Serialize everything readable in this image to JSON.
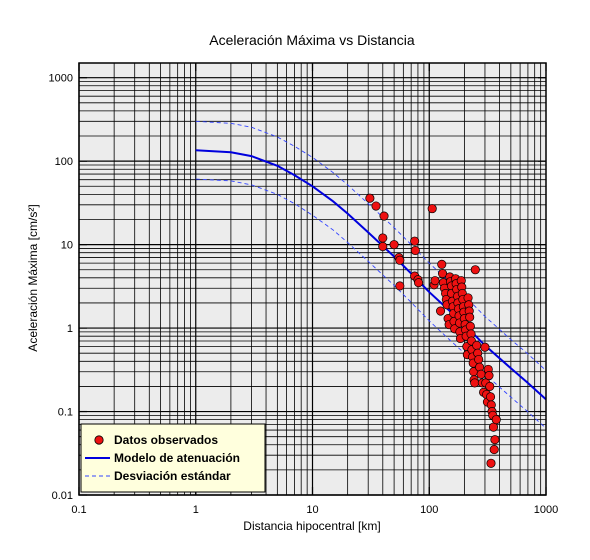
{
  "chart_data": {
    "type": "scatter",
    "title": "Aceleración Máxima vs Distancia",
    "xlabel": "Distancia hipocentral [km]",
    "ylabel": "Aceleración Máxima [cm/s²]",
    "x_scale": "log",
    "y_scale": "log",
    "xlim": [
      0.1,
      1000
    ],
    "ylim": [
      0.01,
      1500
    ],
    "x_ticks": [
      {
        "value": 0.1,
        "label": "0.1"
      },
      {
        "value": 1,
        "label": "1"
      },
      {
        "value": 10,
        "label": "10"
      },
      {
        "value": 100,
        "label": "100"
      },
      {
        "value": 1000,
        "label": "1000"
      }
    ],
    "y_ticks": [
      {
        "value": 0.01,
        "label": "0.01"
      },
      {
        "value": 0.1,
        "label": "0.1"
      },
      {
        "value": 1,
        "label": "1"
      },
      {
        "value": 10,
        "label": "10"
      },
      {
        "value": 100,
        "label": "100"
      },
      {
        "value": 1000,
        "label": "1000"
      }
    ],
    "grid": true,
    "legend_position": "bottom-left",
    "colors": {
      "plot_background": "#ececec",
      "grid": "#000000",
      "points": "#ee1111",
      "model": "#0000dd",
      "std": "#3344ff",
      "legend_background": "#ffffdd"
    },
    "series": [
      {
        "name": "Datos observados",
        "kind": "scatter",
        "points": [
          [
            31,
            36
          ],
          [
            35,
            29
          ],
          [
            41,
            22
          ],
          [
            40,
            12
          ],
          [
            40,
            9.5
          ],
          [
            50,
            10
          ],
          [
            55,
            7
          ],
          [
            56,
            6.5
          ],
          [
            56,
            3.2
          ],
          [
            75,
            11
          ],
          [
            76,
            8.5
          ],
          [
            75,
            4.2
          ],
          [
            80,
            3.8
          ],
          [
            81,
            3.5
          ],
          [
            106,
            27
          ],
          [
            110,
            3.3
          ],
          [
            112,
            3.7
          ],
          [
            125,
            1.6
          ],
          [
            128,
            5.8
          ],
          [
            130,
            4.5
          ],
          [
            132,
            3.5
          ],
          [
            135,
            3.0
          ],
          [
            138,
            2.6
          ],
          [
            140,
            2.2
          ],
          [
            142,
            1.9
          ],
          [
            145,
            1.3
          ],
          [
            148,
            1.1
          ],
          [
            150,
            4.1
          ],
          [
            152,
            3.6
          ],
          [
            155,
            3.2
          ],
          [
            155,
            2.6
          ],
          [
            158,
            2.1
          ],
          [
            160,
            1.8
          ],
          [
            162,
            1.5
          ],
          [
            163,
            1.2
          ],
          [
            165,
            0.98
          ],
          [
            168,
            3.9
          ],
          [
            170,
            3.4
          ],
          [
            172,
            2.9
          ],
          [
            175,
            2.4
          ],
          [
            176,
            2.0
          ],
          [
            178,
            1.7
          ],
          [
            180,
            1.4
          ],
          [
            182,
            1.15
          ],
          [
            183,
            0.9
          ],
          [
            185,
            0.75
          ],
          [
            188,
            3.7
          ],
          [
            190,
            3.1
          ],
          [
            192,
            2.6
          ],
          [
            194,
            2.2
          ],
          [
            196,
            1.8
          ],
          [
            198,
            1.55
          ],
          [
            200,
            1.3
          ],
          [
            203,
            1.1
          ],
          [
            205,
            0.95
          ],
          [
            207,
            0.8
          ],
          [
            210,
            0.6
          ],
          [
            212,
            0.48
          ],
          [
            215,
            2.3
          ],
          [
            218,
            1.9
          ],
          [
            220,
            1.6
          ],
          [
            222,
            1.35
          ],
          [
            225,
            1.05
          ],
          [
            228,
            0.85
          ],
          [
            230,
            0.7
          ],
          [
            232,
            0.55
          ],
          [
            235,
            0.45
          ],
          [
            238,
            0.38
          ],
          [
            240,
            0.3
          ],
          [
            242,
            0.24
          ],
          [
            245,
            0.22
          ],
          [
            248,
            5.0
          ],
          [
            255,
            0.62
          ],
          [
            260,
            0.5
          ],
          [
            265,
            0.42
          ],
          [
            270,
            0.34
          ],
          [
            278,
            0.28
          ],
          [
            285,
            0.22
          ],
          [
            292,
            0.17
          ],
          [
            300,
            0.59
          ],
          [
            305,
            0.22
          ],
          [
            310,
            0.16
          ],
          [
            315,
            0.13
          ],
          [
            320,
            0.32
          ],
          [
            325,
            0.27
          ],
          [
            330,
            0.2
          ],
          [
            335,
            0.15
          ],
          [
            340,
            0.12
          ],
          [
            345,
            0.1
          ],
          [
            338,
            0.024
          ],
          [
            350,
            0.09
          ],
          [
            355,
            0.065
          ],
          [
            360,
            0.035
          ],
          [
            365,
            0.046
          ],
          [
            375,
            0.08
          ]
        ]
      },
      {
        "name": "Modelo de atenuación",
        "kind": "line",
        "points": [
          [
            1,
            135
          ],
          [
            2,
            128
          ],
          [
            3,
            115
          ],
          [
            5,
            88
          ],
          [
            7,
            68
          ],
          [
            10,
            50
          ],
          [
            15,
            33
          ],
          [
            20,
            23.5
          ],
          [
            30,
            14
          ],
          [
            50,
            7.2
          ],
          [
            70,
            4.5
          ],
          [
            100,
            2.7
          ],
          [
            150,
            1.6
          ],
          [
            200,
            1.1
          ],
          [
            300,
            0.62
          ],
          [
            500,
            0.33
          ],
          [
            700,
            0.22
          ],
          [
            1000,
            0.14
          ]
        ]
      },
      {
        "name": "Desviación estándar",
        "kind": "line-dashed",
        "upper": [
          [
            1,
            300
          ],
          [
            2,
            284
          ],
          [
            3,
            255
          ],
          [
            5,
            195
          ],
          [
            7,
            151
          ],
          [
            10,
            111
          ],
          [
            15,
            73
          ],
          [
            20,
            52
          ],
          [
            30,
            31
          ],
          [
            50,
            16
          ],
          [
            70,
            10
          ],
          [
            100,
            6.0
          ],
          [
            150,
            3.55
          ],
          [
            200,
            2.45
          ],
          [
            300,
            1.38
          ],
          [
            500,
            0.73
          ],
          [
            700,
            0.49
          ],
          [
            1000,
            0.31
          ]
        ],
        "lower": [
          [
            1,
            61
          ],
          [
            2,
            58
          ],
          [
            3,
            52
          ],
          [
            5,
            40
          ],
          [
            7,
            31
          ],
          [
            10,
            22.5
          ],
          [
            15,
            15
          ],
          [
            20,
            10.6
          ],
          [
            30,
            6.3
          ],
          [
            50,
            3.25
          ],
          [
            70,
            2.03
          ],
          [
            100,
            1.22
          ],
          [
            150,
            0.72
          ],
          [
            200,
            0.5
          ],
          [
            300,
            0.28
          ],
          [
            500,
            0.149
          ],
          [
            700,
            0.099
          ],
          [
            1000,
            0.063
          ]
        ]
      }
    ]
  }
}
